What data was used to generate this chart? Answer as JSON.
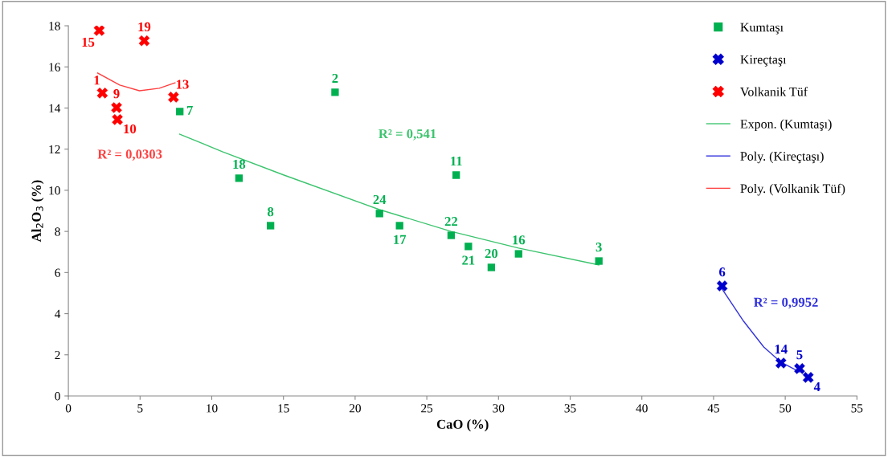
{
  "chart_data": {
    "type": "scatter",
    "xlabel": "CaO (%)",
    "ylabel": "Al$_{2}$O$_{3}$ (%)",
    "xlim": [
      0,
      55
    ],
    "xticks": [
      0,
      5,
      10,
      15,
      20,
      25,
      30,
      35,
      40,
      45,
      50,
      55
    ],
    "ylim": [
      0,
      18
    ],
    "yticks": [
      0,
      2,
      4,
      6,
      8,
      10,
      12,
      14,
      16,
      18
    ],
    "grid": false,
    "legend": "top right",
    "series": [
      {
        "name": "Kumtaşı",
        "marker": "square",
        "color": "#00b050",
        "x": [
          7.77,
          18.6,
          11.9,
          14.1,
          21.7,
          23.1,
          27.05,
          26.7,
          27.9,
          29.5,
          31.4,
          37.0
        ],
        "values": [
          13.83,
          14.77,
          10.59,
          8.28,
          8.87,
          8.28,
          10.74,
          7.81,
          7.27,
          6.25,
          6.91,
          6.56
        ]
      },
      {
        "name": "Kireçtaşı",
        "marker": "cross",
        "color": "#0000cc",
        "x": [
          45.6,
          49.7,
          51.0,
          51.6
        ],
        "values": [
          5.35,
          1.6,
          1.33,
          0.9
        ]
      },
      {
        "name": "Volkanik Tüf",
        "marker": "cross",
        "color": "#ff0000",
        "x": [
          2.15,
          5.29,
          2.37,
          3.36,
          3.42,
          7.33
        ],
        "values": [
          17.77,
          17.27,
          14.73,
          14.02,
          13.44,
          14.53
        ]
      },
      {
        "name": "Expon. (Kumtaşı)",
        "type": "line",
        "marker": "none",
        "line_style": "solid",
        "color": "#3cc46e",
        "x": [
          7.77,
          10.74,
          15.0,
          21.7,
          26.7,
          31.4,
          37.0
        ],
        "values": [
          12.73,
          11.88,
          10.75,
          9.06,
          8.0,
          7.19,
          6.37
        ]
      },
      {
        "name": "Poly. (Kireçtaşı)",
        "type": "line",
        "marker": "none",
        "line_style": "solid",
        "color": "#3333dd",
        "x": [
          45.6,
          47.1,
          48.5,
          49.7,
          51.0
        ],
        "values": [
          5.2,
          3.63,
          2.38,
          1.64,
          1.17
        ]
      },
      {
        "name": "Poly. (Volkanik Tüf)",
        "type": "line",
        "marker": "none",
        "line_style": "solid",
        "color": "#ff4040",
        "x": [
          2.04,
          3.58,
          4.96,
          6.34,
          7.44
        ],
        "values": [
          15.7,
          15.12,
          14.84,
          14.96,
          15.23
        ]
      }
    ],
    "annotations": [
      {
        "text": "7",
        "x": 7.77,
        "y": 13.83
      },
      {
        "text": "2",
        "x": 18.6,
        "y": 14.77
      },
      {
        "text": "18",
        "x": 11.9,
        "y": 10.59
      },
      {
        "text": "8",
        "x": 14.1,
        "y": 8.28
      },
      {
        "text": "24",
        "x": 21.7,
        "y": 8.87
      },
      {
        "text": "17",
        "x": 23.1,
        "y": 8.28
      },
      {
        "text": "11",
        "x": 27.05,
        "y": 10.74
      },
      {
        "text": "22",
        "x": 26.7,
        "y": 7.81
      },
      {
        "text": "21",
        "x": 27.9,
        "y": 7.27
      },
      {
        "text": "20",
        "x": 29.5,
        "y": 6.25
      },
      {
        "text": "16",
        "x": 31.4,
        "y": 6.91
      },
      {
        "text": "3",
        "x": 37.0,
        "y": 6.56
      },
      {
        "text": "6",
        "x": 45.6,
        "y": 5.35
      },
      {
        "text": "14",
        "x": 49.7,
        "y": 1.6
      },
      {
        "text": "5",
        "x": 51.0,
        "y": 1.33
      },
      {
        "text": "4",
        "x": 51.6,
        "y": 0.9
      },
      {
        "text": "15",
        "x": 2.15,
        "y": 17.77
      },
      {
        "text": "19",
        "x": 5.29,
        "y": 17.27
      },
      {
        "text": "1",
        "x": 2.37,
        "y": 14.73
      },
      {
        "text": "9",
        "x": 3.36,
        "y": 14.02
      },
      {
        "text": "10",
        "x": 3.42,
        "y": 13.44
      },
      {
        "text": "13",
        "x": 7.33,
        "y": 14.53
      },
      "R² = 0,541",
      "R² = 0,9952",
      "R² = 0,0303"
    ]
  }
}
